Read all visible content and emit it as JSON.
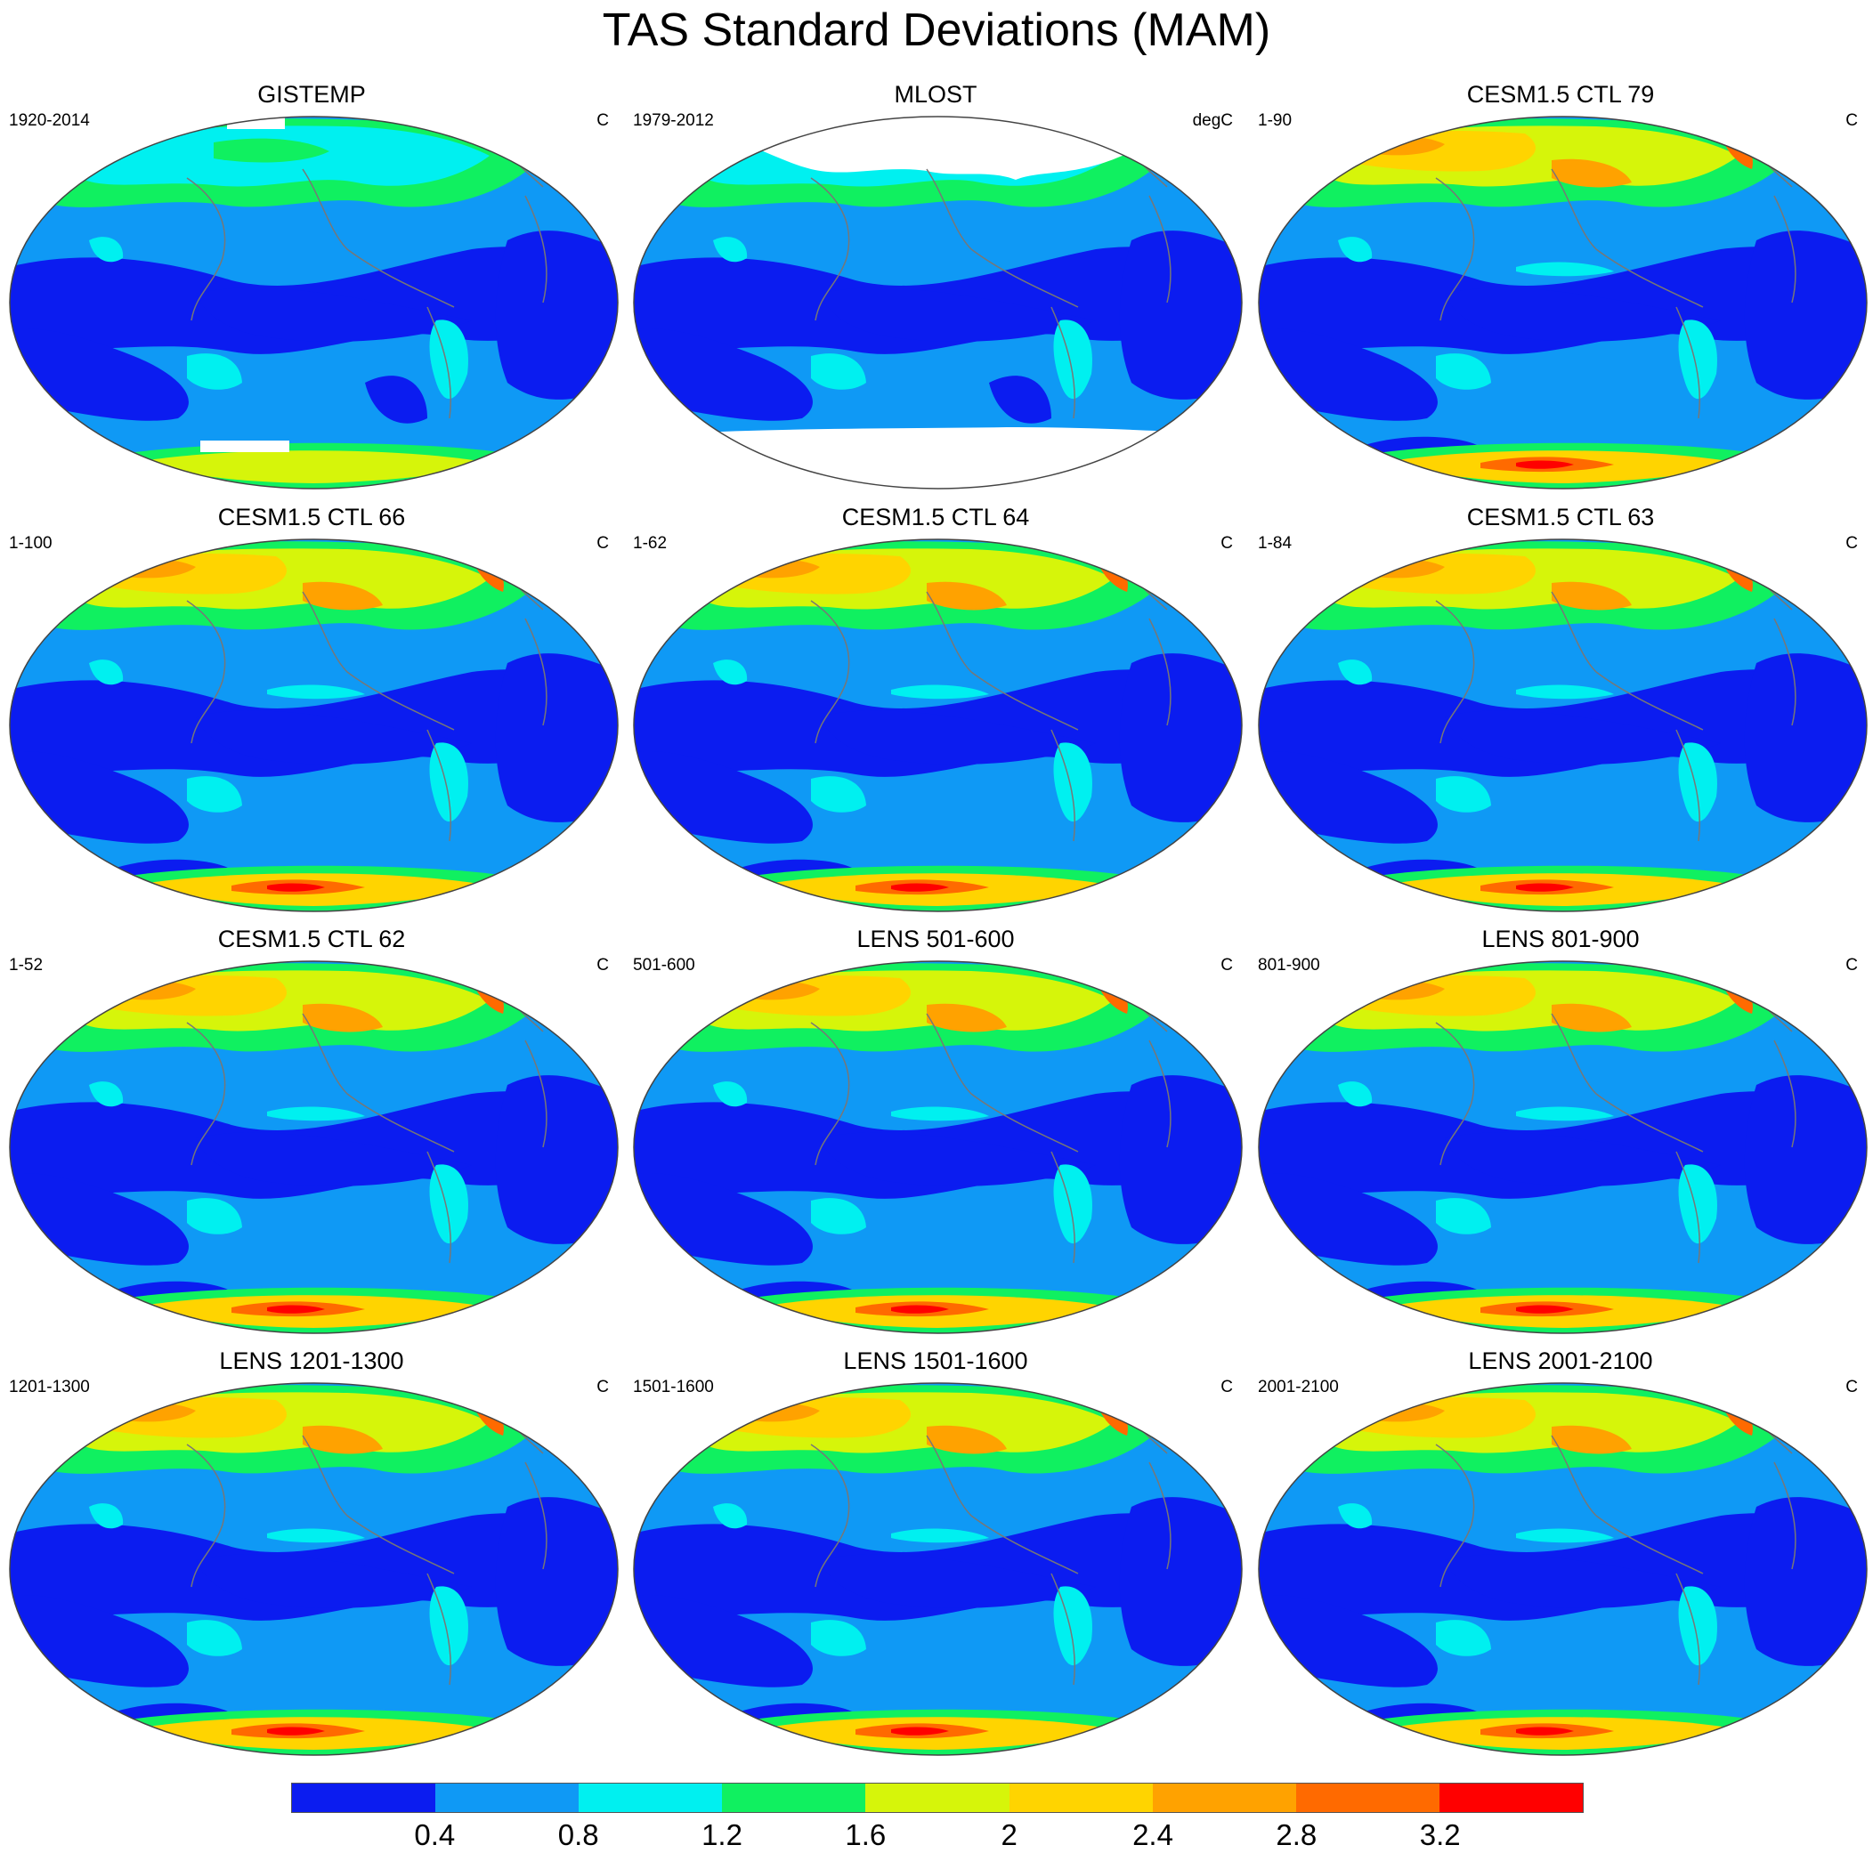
{
  "title": "TAS Standard Deviations (MAM)",
  "colorbar": {
    "labels": [
      "0.4",
      "0.8",
      "1.2",
      "1.6",
      "2",
      "2.4",
      "2.8",
      "3.2"
    ],
    "colors": [
      "#0b1cf0",
      "#0f99f5",
      "#00f0f0",
      "#10f060",
      "#d6f50a",
      "#ffd400",
      "#ffa200",
      "#ff6a00",
      "#ff0000"
    ]
  },
  "panels": [
    {
      "title": "GISTEMP",
      "left": "1920-2014",
      "right": "C",
      "pattern": "obs"
    },
    {
      "title": "MLOST",
      "left": "1979-2012",
      "right": "degC",
      "pattern": "obs-missing"
    },
    {
      "title": "CESM1.5 CTL 79",
      "left": "1-90",
      "right": "C",
      "pattern": "model"
    },
    {
      "title": "CESM1.5 CTL 66",
      "left": "1-100",
      "right": "C",
      "pattern": "model"
    },
    {
      "title": "CESM1.5 CTL 64",
      "left": "1-62",
      "right": "C",
      "pattern": "model"
    },
    {
      "title": "CESM1.5 CTL 63",
      "left": "1-84",
      "right": "C",
      "pattern": "model"
    },
    {
      "title": "CESM1.5 CTL 62",
      "left": "1-52",
      "right": "C",
      "pattern": "model"
    },
    {
      "title": "LENS 501-600",
      "left": "501-600",
      "right": "C",
      "pattern": "model"
    },
    {
      "title": "LENS 801-900",
      "left": "801-900",
      "right": "C",
      "pattern": "model"
    },
    {
      "title": "LENS 1201-1300",
      "left": "1201-1300",
      "right": "C",
      "pattern": "model"
    },
    {
      "title": "LENS 1501-1600",
      "left": "1501-1600",
      "right": "C",
      "pattern": "model"
    },
    {
      "title": "LENS 2001-2100",
      "left": "2001-2100",
      "right": "C",
      "pattern": "model"
    }
  ]
}
